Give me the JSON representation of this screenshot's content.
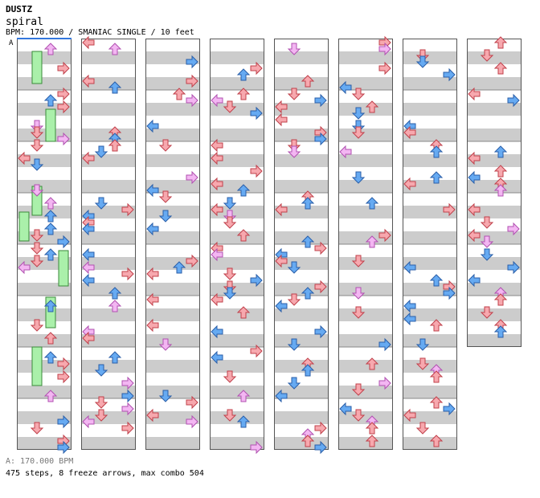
{
  "header": {
    "artist": "DUSTZ",
    "song": "spiral",
    "info": "BPM: 170.000 / SMANIAC SINGLE / 10 feet",
    "bpm_marker": "A"
  },
  "footer": {
    "bpm_line": "A: 170.000 BPM",
    "stats": "475 steps, 8 freeze arrows, max combo 504"
  },
  "colors": {
    "stripe": "#cccccc",
    "border": "#555555",
    "quarter": "#f7a8ae",
    "eighth": "#66aaf2",
    "sixteenth": "#f3b6f2",
    "freeze": "#aaf0aa",
    "bpm_line": "#3377dd"
  },
  "icons": [
    "left-arrow-icon",
    "down-arrow-icon",
    "up-arrow-icon",
    "right-arrow-icon",
    "freeze-arrow-icon"
  ],
  "layout_counts": {
    "columns": 8,
    "measures_per_column": 8,
    "last_column_measures": 6
  }
}
